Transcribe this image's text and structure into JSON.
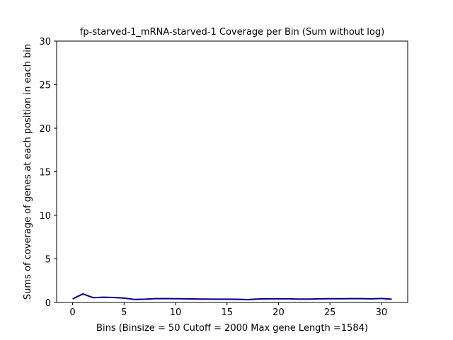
{
  "chart_data": {
    "type": "line",
    "title": "fp-starved-1_mRNA-starved-1 Coverage per Bin (Sum without log)",
    "xlabel": "Bins  (Binsize = 50 Cutoff = 2000 Max gene Length =1584)",
    "ylabel": "Sums of coverage of genes at each position in each bin",
    "xlim": [
      -1.55,
      32.55
    ],
    "ylim": [
      0,
      30
    ],
    "x_ticks": [
      0,
      5,
      10,
      15,
      20,
      25,
      30
    ],
    "y_ticks": [
      0,
      5,
      10,
      15,
      20,
      25,
      30
    ],
    "grid": false,
    "series": [
      {
        "color": "#000080",
        "x": [
          0,
          1,
          2,
          3,
          4,
          5,
          6,
          7,
          8,
          9,
          10,
          11,
          12,
          13,
          14,
          15,
          16,
          17,
          18,
          19,
          20,
          21,
          22,
          23,
          24,
          25,
          26,
          27,
          28,
          29,
          30,
          31
        ],
        "values": [
          0.4,
          0.98,
          0.55,
          0.6,
          0.57,
          0.5,
          0.35,
          0.38,
          0.44,
          0.45,
          0.43,
          0.42,
          0.4,
          0.39,
          0.38,
          0.38,
          0.37,
          0.33,
          0.4,
          0.42,
          0.42,
          0.42,
          0.39,
          0.39,
          0.42,
          0.43,
          0.43,
          0.44,
          0.44,
          0.42,
          0.46,
          0.38
        ]
      }
    ]
  }
}
